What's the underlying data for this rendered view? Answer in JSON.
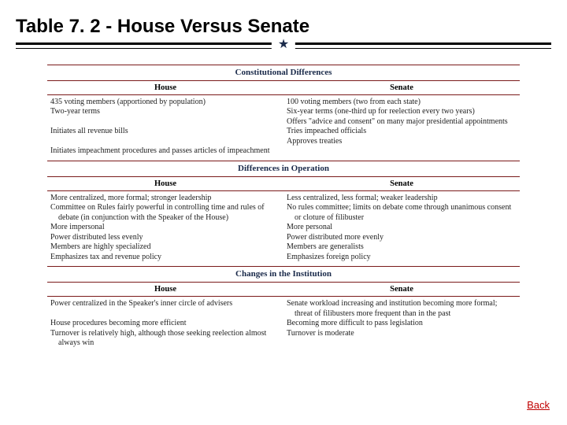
{
  "title": "Table 7. 2 - House Versus Senate",
  "star_glyph": "★",
  "back_label": "Back",
  "colors": {
    "rule_red": "#7a1a1a",
    "title_navy": "#1a2a4a",
    "link_red": "#c00000"
  },
  "sections": [
    {
      "heading": "Constitutional Differences",
      "col_left": "House",
      "col_right": "Senate",
      "rows_left": [
        "435 voting members (apportioned by population)",
        "Two-year terms",
        "",
        "Initiates all revenue bills",
        "",
        "Initiates impeachment procedures and passes articles of impeachment"
      ],
      "rows_right": [
        "100 voting members (two from each state)",
        "Six-year terms (one-third up for reelection every two years)",
        "Offers \"advice and consent\" on many major presidential appointments",
        "Tries impeached officials",
        "Approves treaties"
      ]
    },
    {
      "heading": "Differences in Operation",
      "col_left": "House",
      "col_right": "Senate",
      "rows_left": [
        "More centralized, more formal; stronger leadership",
        "Committee on Rules fairly powerful in controlling time and rules of debate (in conjunction with the Speaker of the House)",
        "More impersonal",
        "Power distributed less evenly",
        "Members are highly specialized",
        "Emphasizes tax and revenue policy"
      ],
      "rows_right": [
        "Less centralized, less formal; weaker leadership",
        "No rules committee; limits on debate come through unanimous consent or cloture of filibuster",
        "More personal",
        "Power distributed more evenly",
        "Members are generalists",
        "Emphasizes foreign policy"
      ]
    },
    {
      "heading": "Changes in the Institution",
      "col_left": "House",
      "col_right": "Senate",
      "rows_left": [
        "Power centralized in the Speaker's inner circle of advisers",
        "",
        "House procedures becoming more efficient",
        "Turnover is relatively high, although those seeking reelection almost always win"
      ],
      "rows_right": [
        "Senate workload increasing and institution becoming more formal; threat of filibusters more frequent than in the past",
        "Becoming more difficult to pass legislation",
        "Turnover is moderate"
      ]
    }
  ]
}
